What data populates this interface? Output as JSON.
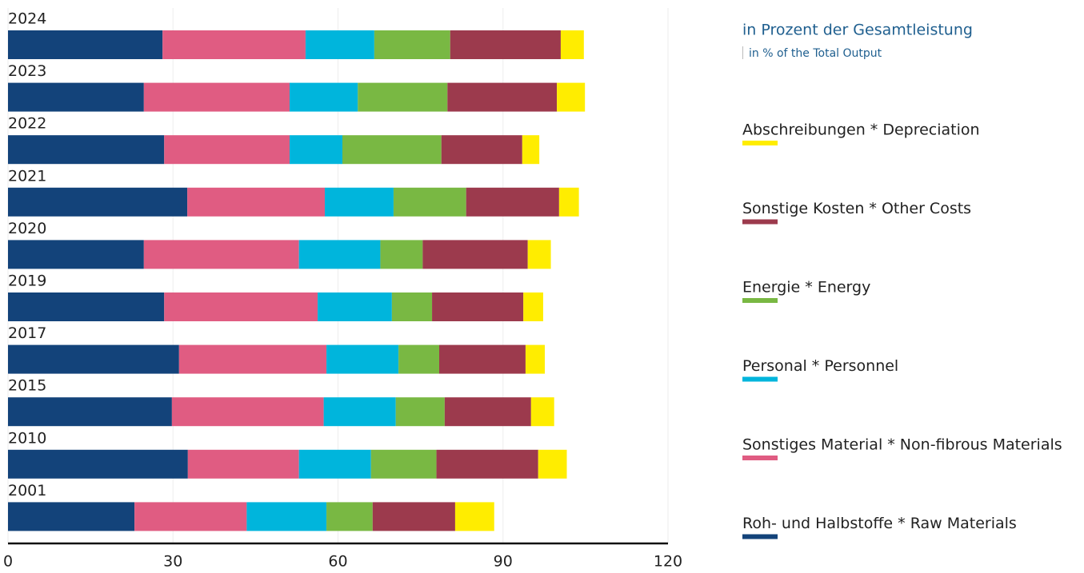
{
  "chart_data": {
    "type": "stacked_barh",
    "title": "in Prozent der Gesamtleistung",
    "subtitle": "in % of the Total Output",
    "categories": [
      "2024",
      "2023",
      "2022",
      "2021",
      "2020",
      "2019",
      "2017",
      "2015",
      "2010",
      "2001"
    ],
    "series": [
      {
        "name": "Roh- und Halbstoffe * Raw Materials",
        "color": "#13437a",
        "values": [
          28.1,
          24.7,
          28.4,
          32.6,
          24.7,
          28.4,
          31.1,
          29.8,
          32.7,
          23.0
        ]
      },
      {
        "name": "Sonstiges Material * Non-fibrous Materials",
        "color": "#e05c82",
        "values": [
          26.0,
          26.5,
          22.8,
          25.0,
          28.2,
          27.9,
          26.8,
          27.6,
          20.2,
          20.4
        ]
      },
      {
        "name": "Personal * Personnel",
        "color": "#00b5dc",
        "values": [
          12.5,
          12.4,
          9.6,
          12.5,
          14.8,
          13.5,
          13.1,
          13.1,
          13.1,
          14.5
        ]
      },
      {
        "name": "Energie * Energy",
        "color": "#79b843",
        "values": [
          13.8,
          16.3,
          18.0,
          13.2,
          7.7,
          7.3,
          7.4,
          8.9,
          11.9,
          8.4
        ]
      },
      {
        "name": "Sonstige Kosten * Other Costs",
        "color": "#9c3a4d",
        "values": [
          20.1,
          19.9,
          14.7,
          16.9,
          19.1,
          16.6,
          15.7,
          15.7,
          18.5,
          15.0
        ]
      },
      {
        "name": "Abschreibungen * Depreciation",
        "color": "#ffed00",
        "values": [
          4.2,
          5.1,
          3.1,
          3.6,
          4.2,
          3.6,
          3.5,
          4.2,
          5.2,
          7.1
        ]
      }
    ],
    "xlim": [
      0,
      120
    ],
    "xticks": [
      0,
      30,
      60,
      90,
      120
    ],
    "grid": true
  }
}
